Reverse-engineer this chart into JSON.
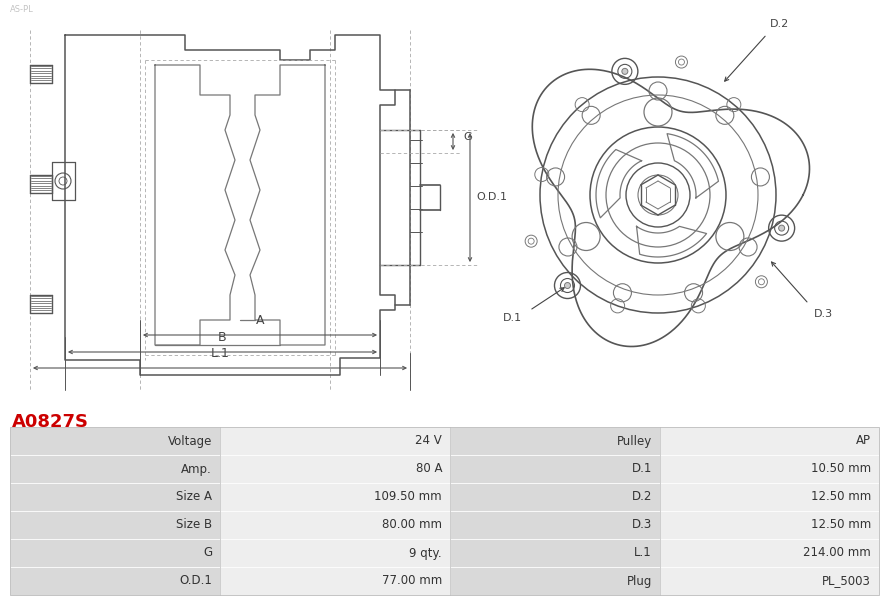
{
  "title": "A0827S",
  "title_color": "#cc0000",
  "bg_color": "#ffffff",
  "lc": "#777777",
  "lc_dark": "#555555",
  "dim_color": "#555555",
  "table_data": [
    [
      "Voltage",
      "24 V",
      "Pulley",
      "AP"
    ],
    [
      "Amp.",
      "80 A",
      "D.1",
      "10.50 mm"
    ],
    [
      "Size A",
      "109.50 mm",
      "D.2",
      "12.50 mm"
    ],
    [
      "Size B",
      "80.00 mm",
      "D.3",
      "12.50 mm"
    ],
    [
      "G",
      "9 qty.",
      "L.1",
      "214.00 mm"
    ],
    [
      "O.D.1",
      "77.00 mm",
      "Plug",
      "PL_5003"
    ]
  ]
}
